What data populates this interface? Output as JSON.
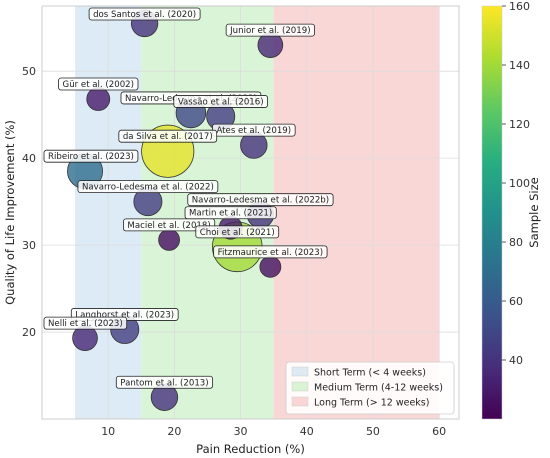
{
  "chart_data": {
    "type": "scatter",
    "title": "",
    "xlabel": "Pain Reduction (%)",
    "ylabel": "Quality of Life Improvement (%)",
    "xlim": [
      0,
      63
    ],
    "ylim": [
      10,
      57.5
    ],
    "xticks": [
      10,
      20,
      30,
      40,
      50,
      60
    ],
    "yticks": [
      20,
      30,
      40,
      50
    ],
    "grid": true,
    "colorbar": {
      "label": "Sample Size",
      "min": 20,
      "max": 160,
      "ticks": [
        40,
        60,
        80,
        100,
        120,
        140,
        160
      ],
      "colormap": "viridis"
    },
    "regions": [
      {
        "label": "Short Term (< 4 weeks)",
        "x": [
          5,
          15
        ],
        "color": "#cfe3f2"
      },
      {
        "label": "Medium Term (4-12 weeks)",
        "x": [
          15,
          35
        ],
        "color": "#c9f0c4"
      },
      {
        "label": "Long Term (> 12 weeks)",
        "x": [
          35,
          60
        ],
        "color": "#f8c6c6"
      }
    ],
    "legend_position": "bottom-right",
    "points": [
      {
        "label": "dos Santos et al. (2020)",
        "x": 15.5,
        "y": 55.5,
        "size": 40
      },
      {
        "label": "Junior et al. (2019)",
        "x": 34.5,
        "y": 53,
        "size": 35
      },
      {
        "label": "Gür et al. (2002)",
        "x": 8.5,
        "y": 46.8,
        "size": 30
      },
      {
        "label": "Navarro-Ledesma et al. (2023)",
        "x": 22.5,
        "y": 45.2,
        "size": 50
      },
      {
        "label": "Vassão et al. (2016)",
        "x": 27,
        "y": 44.8,
        "size": 45
      },
      {
        "label": "Ates et al. (2019)",
        "x": 32,
        "y": 41.5,
        "size": 40
      },
      {
        "label": "da Silva et al. (2017)",
        "x": 19,
        "y": 40.8,
        "size": 155
      },
      {
        "label": "Ribeiro et al. (2023)",
        "x": 6.5,
        "y": 38.5,
        "size": 70
      },
      {
        "label": "Navarro-Ledesma et al. (2022)",
        "x": 16,
        "y": 35,
        "size": 45
      },
      {
        "label": "Navarro-Ledesma et al. (2022b)",
        "x": 33,
        "y": 33.5,
        "size": 40
      },
      {
        "label": "Martin et al. (2021)",
        "x": 28.5,
        "y": 32,
        "size": 30
      },
      {
        "label": "Maciel et al. (2018)",
        "x": 19.2,
        "y": 30.6,
        "size": 25
      },
      {
        "label": "Choi et al. (2021)",
        "x": 29.5,
        "y": 29.8,
        "size": 140
      },
      {
        "label": "Fitzmaurice et al. (2023)",
        "x": 34.5,
        "y": 27.5,
        "size": 25
      },
      {
        "label": "Langhorst et al. (2023)",
        "x": 12.5,
        "y": 20.3,
        "size": 45
      },
      {
        "label": "Nelli et al. (2023)",
        "x": 6.5,
        "y": 19.3,
        "size": 35
      },
      {
        "label": "Pantom et al. (2013)",
        "x": 18.5,
        "y": 12.5,
        "size": 40
      }
    ]
  }
}
